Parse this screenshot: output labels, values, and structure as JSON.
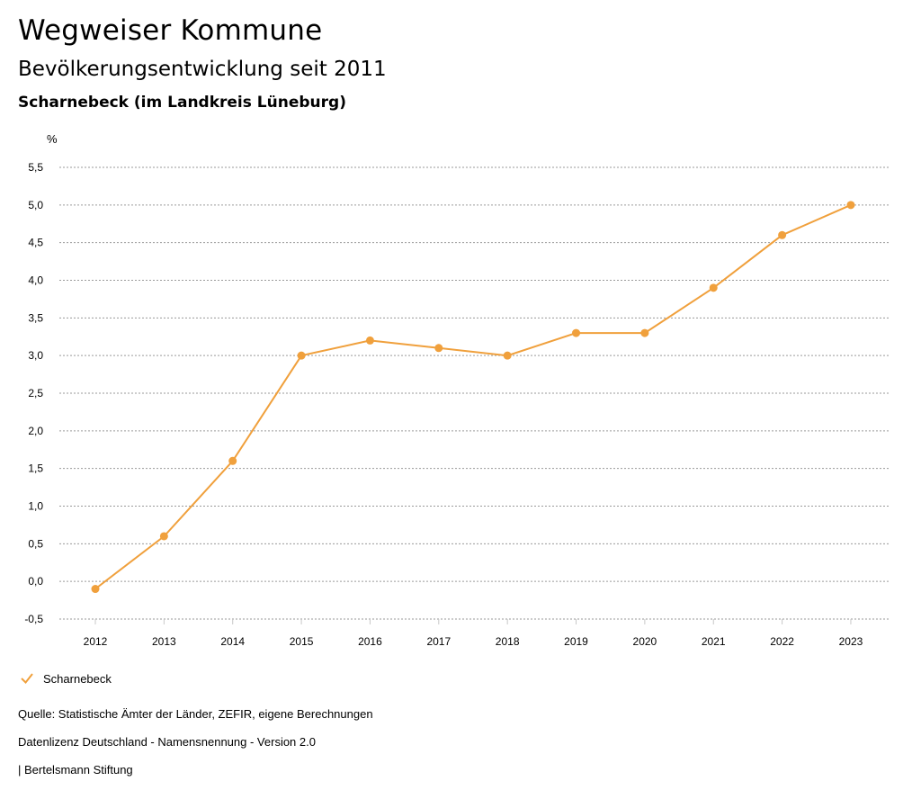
{
  "header": {
    "title": "Wegweiser Kommune",
    "subtitle": "Bevölkerungsentwicklung seit 2011",
    "region": "Scharnebeck (im Landkreis Lüneburg)"
  },
  "colors": {
    "series": "#F0A03C",
    "grid": "#9a9a9a",
    "text": "#000000"
  },
  "legend": {
    "items": [
      {
        "label": "Scharnebeck",
        "icon": "check-icon"
      }
    ]
  },
  "footer": {
    "source": "Quelle: Statistische Ämter der Länder, ZEFIR, eigene Berechnungen",
    "license": "Datenlizenz Deutschland - Namensnennung - Version 2.0",
    "publisher": "| Bertelsmann Stiftung"
  },
  "chart_data": {
    "type": "line",
    "title": "Bevölkerungsentwicklung seit 2011",
    "xlabel": "",
    "ylabel": "%",
    "ylim": [
      -0.5,
      5.5
    ],
    "grid": true,
    "legend_position": "bottom-left",
    "y_ticks": [
      "-0,5",
      "0,0",
      "0,5",
      "1,0",
      "1,5",
      "2,0",
      "2,5",
      "3,0",
      "3,5",
      "4,0",
      "4,5",
      "5,0",
      "5,5"
    ],
    "y_tick_values": [
      -0.5,
      0,
      0.5,
      1,
      1.5,
      2,
      2.5,
      3,
      3.5,
      4,
      4.5,
      5,
      5.5
    ],
    "categories": [
      "2012",
      "2013",
      "2014",
      "2015",
      "2016",
      "2017",
      "2018",
      "2019",
      "2020",
      "2021",
      "2022",
      "2023"
    ],
    "series": [
      {
        "name": "Scharnebeck",
        "values": [
          -0.1,
          0.6,
          1.6,
          3.0,
          3.2,
          3.1,
          3.0,
          3.3,
          3.3,
          3.9,
          4.6,
          5.0
        ]
      }
    ]
  }
}
